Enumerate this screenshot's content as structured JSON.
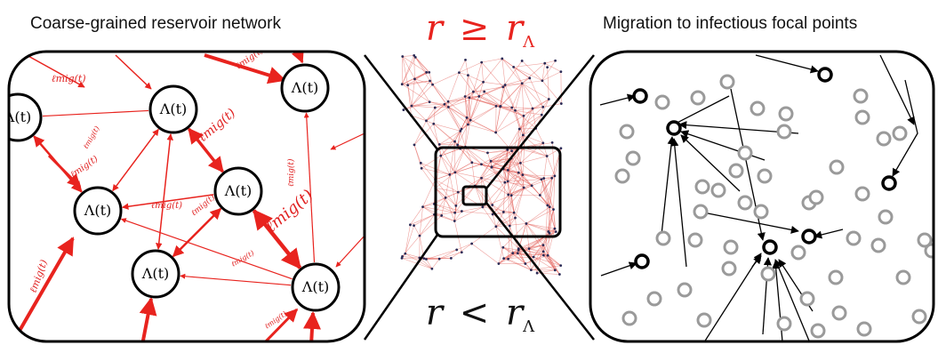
{
  "left_panel": {
    "title": "Coarse-grained reservoir network",
    "node_label": "Λ(t)",
    "edge_label": "ℓmig(t)"
  },
  "center_panel": {
    "top_condition": {
      "var": "r",
      "op": "≥",
      "threshold": "rΛ"
    },
    "bottom_condition": {
      "var": "r",
      "op": "<",
      "threshold": "rΛ"
    }
  },
  "right_panel": {
    "title": "Migration to infectious focal points"
  },
  "colors": {
    "edge_red": "#e8231e",
    "node_black": "#000000",
    "node_gray": "#9a9a9a",
    "network_red": "#e2564f"
  }
}
